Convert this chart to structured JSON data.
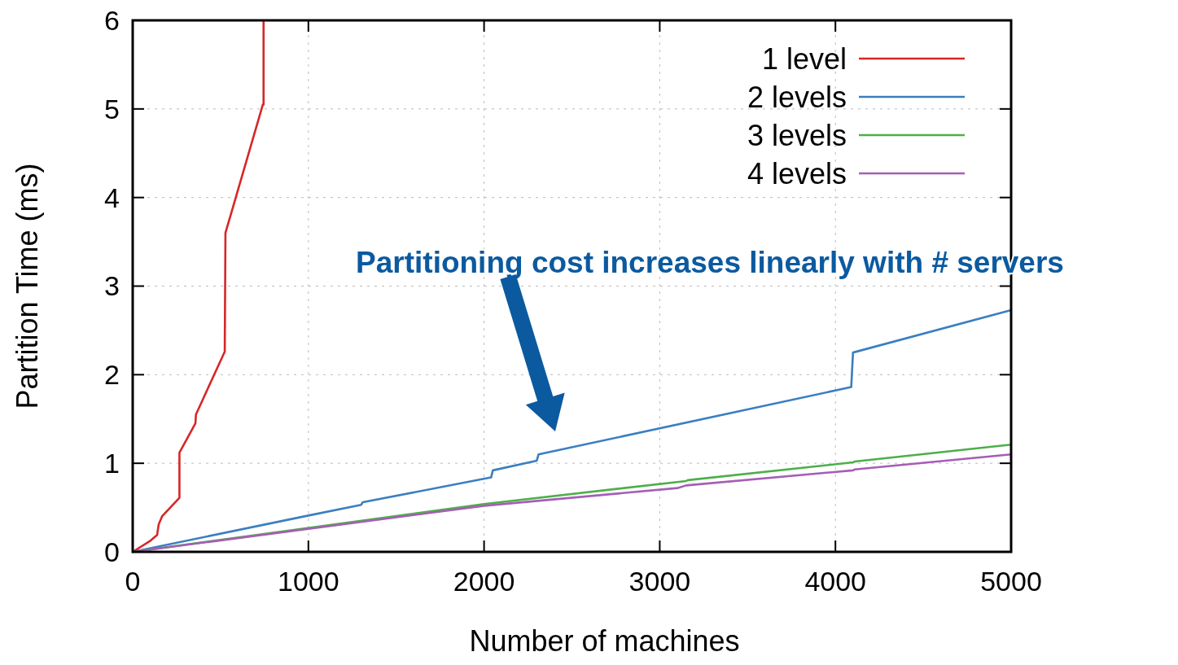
{
  "chart_data": {
    "type": "line",
    "xlabel": "Number of machines",
    "ylabel": "Partition Time (ms)",
    "xlim": [
      0,
      5000
    ],
    "ylim": [
      0,
      6
    ],
    "xticks": [
      0,
      1000,
      2000,
      3000,
      4000,
      5000
    ],
    "yticks": [
      0,
      1,
      2,
      3,
      4,
      5,
      6
    ],
    "grid": true,
    "legend": "top right",
    "line_style": "solid",
    "marker": "none",
    "annotations": [
      "Partitioning cost increases linearly with # servers"
    ],
    "series": [
      {
        "name": "1 level",
        "color": "#d62728",
        "x": [
          0,
          97,
          139,
          148,
          167,
          266,
          266,
          357,
          360,
          524,
          528,
          741,
          745,
          745
        ],
        "values": [
          0,
          0.12,
          0.19,
          0.31,
          0.4,
          0.61,
          1.12,
          1.45,
          1.55,
          2.26,
          3.6,
          5.05,
          5.05,
          6
        ]
      },
      {
        "name": "2 levels",
        "color": "#3a7fc1",
        "x": [
          0,
          1000,
          1300,
          1310,
          2040,
          2050,
          2300,
          2310,
          4090,
          4100,
          5000
        ],
        "values": [
          0,
          0.41,
          0.53,
          0.56,
          0.84,
          0.92,
          1.03,
          1.1,
          1.86,
          2.25,
          2.73
        ]
      },
      {
        "name": "3 levels",
        "color": "#4daf4a",
        "x": [
          0,
          2000,
          3150,
          3160,
          4100,
          4110,
          5000
        ],
        "values": [
          0,
          0.54,
          0.8,
          0.81,
          1.01,
          1.02,
          1.21
        ]
      },
      {
        "name": "4 levels",
        "color": "#a55eb5",
        "x": [
          0,
          2000,
          3100,
          3150,
          4100,
          4110,
          5000
        ],
        "values": [
          0,
          0.52,
          0.72,
          0.75,
          0.92,
          0.93,
          1.1
        ]
      }
    ]
  }
}
